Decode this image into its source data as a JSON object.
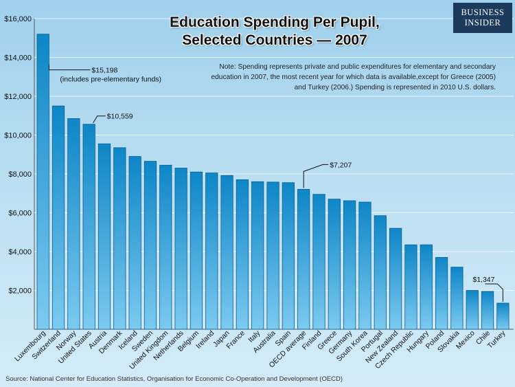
{
  "title_line1": "Education Spending Per Pupil,",
  "title_line2": "Selected Countries — 2007",
  "note_line1": "Note: Spending represents private and public expenditures for elementary and secondary",
  "note_line2": "education in 2007, the most recent year for which data is available,except for Greece (2005)",
  "note_line3": "and Turkey (2006.) Spending is represented in 2010 U.S. dollars.",
  "source": "Source: National Center for Education Statistics, Organisation for Economic Co-Operation and Development (OECD)",
  "logo": {
    "line1": "BUSINESS",
    "line2": "INSIDER"
  },
  "chart_data": {
    "type": "bar",
    "title": "Education Spending Per Pupil, Selected Countries — 2007",
    "xlabel": "",
    "ylabel": "",
    "ylim": [
      0,
      16000
    ],
    "yticks": [
      2000,
      4000,
      6000,
      8000,
      10000,
      12000,
      14000,
      16000
    ],
    "ytick_labels": [
      "$2,000",
      "$4,000",
      "$6,000",
      "$8,000",
      "$10,000",
      "$12,000",
      "$14,000",
      "$16,000"
    ],
    "grid": true,
    "categories": [
      "Luxembourg",
      "Switzerland",
      "Norway",
      "United States",
      "Austria",
      "Denmark",
      "Iceland",
      "Sweden",
      "United Kingdom",
      "Netherlands",
      "Belgium",
      "Ireland",
      "Japan",
      "France",
      "Italy",
      "Australia",
      "Spain",
      "OECD average",
      "Finland",
      "Greece",
      "Germany",
      "South Korea",
      "Portugal",
      "New Zealand",
      "Czech Republic",
      "Hungary",
      "Poland",
      "Slovakia",
      "Mexico",
      "Chile",
      "Turkey"
    ],
    "values": [
      15198,
      11500,
      10850,
      10559,
      9550,
      9350,
      8900,
      8650,
      8450,
      8300,
      8100,
      8050,
      7920,
      7700,
      7600,
      7580,
      7550,
      7207,
      6950,
      6700,
      6620,
      6550,
      5850,
      5200,
      4350,
      4350,
      3700,
      3200,
      2000,
      1950,
      1347
    ],
    "annotations": [
      {
        "category": "Luxembourg",
        "text": "$15,198",
        "subtext": "(includes pre-elementary funds)"
      },
      {
        "category": "United States",
        "text": "$10,559"
      },
      {
        "category": "OECD average",
        "text": "$7,207"
      },
      {
        "category": "Turkey",
        "text": "$1,347"
      }
    ],
    "colors": {
      "bar_top": "#0e86c7",
      "bar_bottom": "#7ccaf0",
      "bar_edge": "#0b5f90",
      "grid": "#ffffff",
      "axis": "#555555"
    }
  }
}
